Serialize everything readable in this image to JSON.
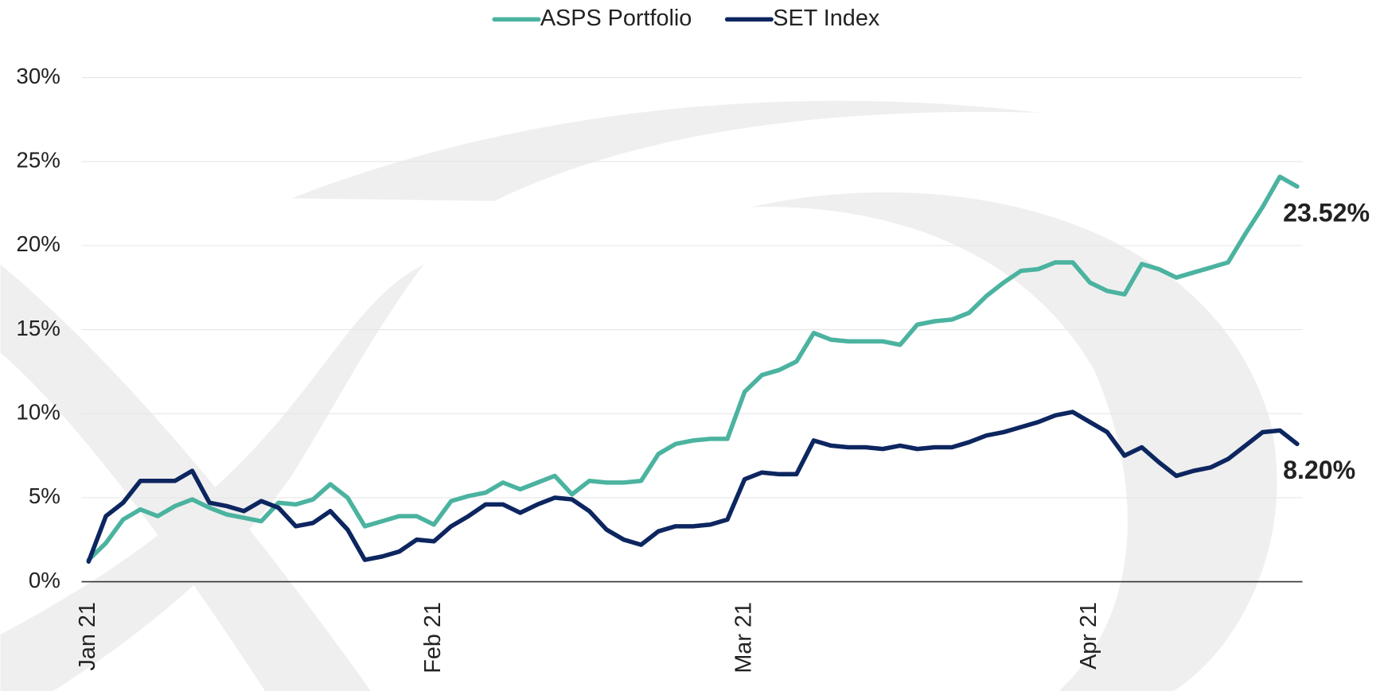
{
  "chart_data": {
    "type": "line",
    "categories": [
      "Jan 21",
      null,
      null,
      null,
      null,
      null,
      null,
      null,
      null,
      null,
      null,
      null,
      null,
      null,
      null,
      null,
      null,
      null,
      null,
      null,
      "Feb 21",
      null,
      null,
      null,
      null,
      null,
      null,
      null,
      null,
      null,
      null,
      null,
      null,
      null,
      null,
      null,
      null,
      null,
      "Mar 21",
      null,
      null,
      null,
      null,
      null,
      null,
      null,
      null,
      null,
      null,
      null,
      null,
      null,
      null,
      null,
      null,
      null,
      null,
      null,
      "Apr 21",
      null,
      null,
      null,
      null,
      null,
      null,
      null,
      null,
      null,
      null,
      null,
      null
    ],
    "series": [
      {
        "name": "ASPS Portfolio",
        "color": "#4bb3a0",
        "values": [
          1.3,
          2.3,
          3.7,
          4.3,
          3.9,
          4.5,
          4.9,
          4.4,
          4.0,
          3.8,
          3.6,
          4.7,
          4.6,
          4.9,
          5.8,
          5.0,
          3.3,
          3.6,
          3.9,
          3.9,
          3.4,
          4.8,
          5.1,
          5.3,
          5.9,
          5.5,
          5.9,
          6.3,
          5.2,
          6.0,
          5.9,
          5.9,
          6.0,
          7.6,
          8.2,
          8.4,
          8.5,
          8.5,
          11.3,
          12.3,
          12.6,
          13.1,
          14.8,
          14.4,
          14.3,
          14.3,
          14.3,
          14.1,
          15.3,
          15.5,
          15.6,
          16.0,
          17.0,
          17.8,
          18.5,
          18.6,
          19.0,
          19.0,
          17.8,
          17.3,
          17.1,
          18.9,
          18.6,
          18.1,
          18.4,
          18.7,
          19.0,
          20.7,
          22.3,
          24.1,
          23.52
        ],
        "value_labels": [
          null,
          null,
          null,
          null,
          null,
          null,
          null,
          null,
          null,
          null,
          null,
          null,
          null,
          null,
          null,
          null,
          null,
          null,
          null,
          null,
          null,
          null,
          null,
          null,
          null,
          null,
          null,
          null,
          null,
          null,
          null,
          null,
          null,
          null,
          null,
          null,
          null,
          null,
          null,
          null,
          null,
          null,
          null,
          null,
          null,
          null,
          null,
          null,
          null,
          null,
          null,
          null,
          null,
          null,
          null,
          null,
          null,
          null,
          null,
          null,
          null,
          null,
          null,
          null,
          null,
          null,
          null,
          null,
          null,
          null,
          "23.52%"
        ]
      },
      {
        "name": "SET Index",
        "color": "#0d2660",
        "values": [
          1.2,
          3.9,
          4.7,
          6.0,
          6.0,
          6.0,
          6.6,
          4.7,
          4.5,
          4.2,
          4.8,
          4.4,
          3.3,
          3.5,
          4.2,
          3.1,
          1.3,
          1.5,
          1.8,
          2.5,
          2.4,
          3.3,
          3.9,
          4.6,
          4.6,
          4.1,
          4.6,
          5.0,
          4.9,
          4.2,
          3.1,
          2.5,
          2.2,
          3.0,
          3.3,
          3.3,
          3.4,
          3.7,
          6.1,
          6.5,
          6.4,
          6.4,
          8.4,
          8.1,
          8.0,
          8.0,
          7.9,
          8.1,
          7.9,
          8.0,
          8.0,
          8.3,
          8.7,
          8.9,
          9.2,
          9.5,
          9.9,
          10.1,
          9.5,
          8.9,
          7.5,
          8.0,
          7.1,
          6.3,
          6.6,
          6.8,
          7.3,
          8.1,
          8.9,
          9.0,
          8.2
        ],
        "value_labels": [
          null,
          null,
          null,
          null,
          null,
          null,
          null,
          null,
          null,
          null,
          null,
          null,
          null,
          null,
          null,
          null,
          null,
          null,
          null,
          null,
          null,
          null,
          null,
          null,
          null,
          null,
          null,
          null,
          null,
          null,
          null,
          null,
          null,
          null,
          null,
          null,
          null,
          null,
          null,
          null,
          null,
          null,
          null,
          null,
          null,
          null,
          null,
          null,
          null,
          null,
          null,
          null,
          null,
          null,
          null,
          null,
          null,
          null,
          null,
          null,
          null,
          null,
          null,
          null,
          null,
          null,
          null,
          null,
          null,
          null,
          "8.20%"
        ]
      }
    ],
    "ylim": [
      0,
      30
    ],
    "yticks": [
      {
        "value": 0,
        "label": "0%"
      },
      {
        "value": 5,
        "label": "5%"
      },
      {
        "value": 10,
        "label": "10%"
      },
      {
        "value": 15,
        "label": "15%"
      },
      {
        "value": 20,
        "label": "20%"
      },
      {
        "value": 25,
        "label": "25%"
      },
      {
        "value": 30,
        "label": "30%"
      }
    ],
    "grid": true,
    "legend": "top"
  }
}
